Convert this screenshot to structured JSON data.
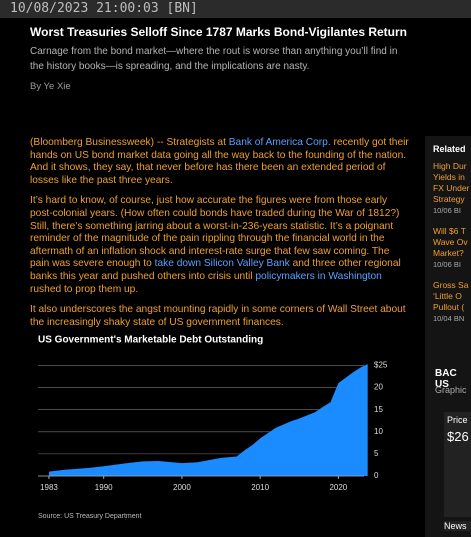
{
  "header": {
    "timestamp": "10/08/2023 21:00:03 [BN]"
  },
  "article": {
    "title": "Worst Treasuries Selloff Since 1787 Marks Bond-Vigilantes Return",
    "subtitle": "Carnage from the bond market—where the rout is worse than anything you’ll find in the history books—is spreading, and the implications are nasty.",
    "byline": "By Ye Xie",
    "paragraphs": [
      [
        "(Bloomberg Businessweek) -- Strategists at ",
        "Bank of America Corp.",
        " recently got their hands on US bond market data going all the way back to the founding of the nation. And it shows, they say, that never before has there been an extended period of losses like the past three years."
      ],
      [
        "It’s hard to know, of course, just how accurate the figures were from those early post-colonial years. (How often could bonds have traded during the War of 1812?) Still, there’s something jarring about a worst-in-236-years statistic. It’s a poignant reminder of the magnitude of the pain rippling through the financial world in the aftermath of an inflation shock and interest-rate surge that few saw coming. The pain was severe enough to ",
        "take down Silicon Valley Bank",
        " and three other regional banks this year and pushed others into crisis until ",
        "policymakers in Washington",
        " rushed to prop them up."
      ],
      [
        "It also underscores the angst mounting rapidly in some corners of Wall Street about the increasingly shaky state of US government finances."
      ]
    ]
  },
  "chart_data": {
    "type": "area",
    "title": "US Government's Marketable Debt Outstanding",
    "source": "Source: US Treasury Department",
    "color": "#1a8cff",
    "x": [
      1983,
      1985,
      1988,
      1990,
      1993,
      1995,
      1997,
      2000,
      2002,
      2005,
      2007,
      2008,
      2009,
      2010,
      2012,
      2014,
      2015,
      2017,
      2018,
      2019,
      2020,
      2021,
      2022,
      2023,
      2023.75
    ],
    "values": [
      1.0,
      1.4,
      1.8,
      2.2,
      2.9,
      3.3,
      3.4,
      2.9,
      3.1,
      4.1,
      4.4,
      5.8,
      7.0,
      8.5,
      10.9,
      12.4,
      13.0,
      14.4,
      15.6,
      16.7,
      21.0,
      22.3,
      23.6,
      24.7,
      25.3
    ],
    "xlim": [
      1981.6,
      2024.3
    ],
    "xticks": [
      1983,
      1990,
      2000,
      2010,
      2020
    ],
    "ylim": [
      0,
      26
    ],
    "yticks": [
      0,
      5,
      10,
      15,
      20,
      {
        "value": 25,
        "label": "$25"
      }
    ],
    "grid": true
  },
  "sidebar": {
    "heading": "Related",
    "items": [
      [
        "High Dur",
        "Yields in",
        "FX Under",
        "Strategy",
        "10/06 BI"
      ],
      [
        "Will $6 T",
        "Wave Ov",
        "Market?",
        "10/06 BI"
      ],
      [
        "Gross Sa",
        "‘Little O",
        "Pullout (",
        "10/04 BN"
      ]
    ],
    "ticker": "BAC US",
    "graphic": "Graphic",
    "price_label": "Price",
    "price": "$26",
    "news": "News"
  }
}
